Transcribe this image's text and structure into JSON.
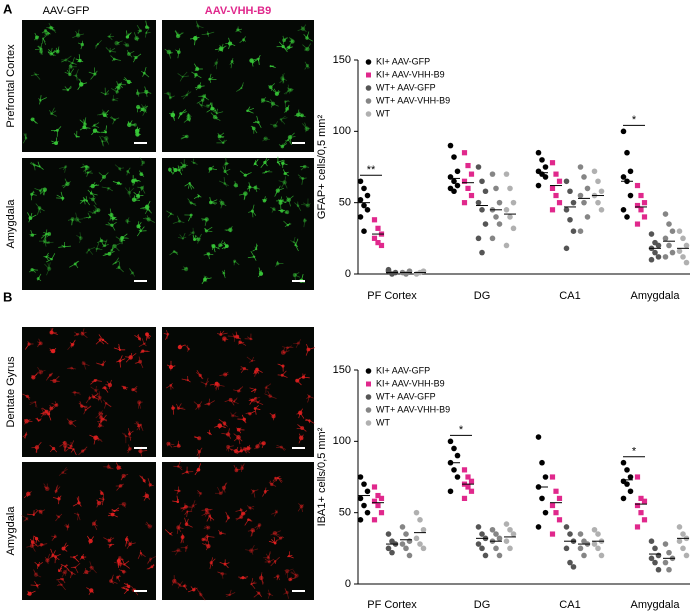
{
  "panels": [
    {
      "label": "A",
      "columns": [
        "AAV-GFP",
        "AAV-VHH-B9"
      ],
      "rows": [
        "Prefrontal Cortex",
        "Amygdala"
      ],
      "stain_color": "#38c838"
    },
    {
      "label": "B",
      "rows": [
        "Dentate Gyrus",
        "Amygdala"
      ],
      "stain_color": "#e02020"
    }
  ],
  "chart_data": [
    {
      "type": "dot",
      "y_label": "GFAP+ cells/0,5 mm²",
      "categories": [
        "PF Cortex",
        "DG",
        "CA1",
        "Amygdala"
      ],
      "ylim": [
        0,
        150
      ],
      "yticks": [
        0,
        50,
        100,
        150
      ],
      "series": [
        {
          "name": "KI+ AAV-GFP",
          "color": "#000000",
          "marker": "circle",
          "values": [
            [
              65,
              60,
              55,
              52,
              48,
              45,
              40,
              30
            ],
            [
              90,
              82,
              72,
              68,
              65,
              62,
              60,
              58
            ],
            [
              85,
              80,
              75,
              72,
              70,
              68,
              62
            ],
            [
              100,
              85,
              72,
              68,
              65,
              55,
              45,
              40
            ]
          ],
          "means": [
            50,
            67,
            71,
            65
          ]
        },
        {
          "name": "KI+ AAV-VHH-B9",
          "color": "#e0288c",
          "marker": "square",
          "values": [
            [
              38,
              32,
              28,
              25,
              22,
              20
            ],
            [
              85,
              76,
              70,
              65,
              60,
              55,
              50
            ],
            [
              78,
              70,
              65,
              60,
              55,
              50,
              45
            ],
            [
              62,
              55,
              50,
              48,
              45,
              40,
              35
            ]
          ],
          "means": [
            28,
            64,
            62,
            47
          ]
        },
        {
          "name": "WT+ AAV-GFP",
          "color": "#555555",
          "marker": "circle",
          "values": [
            [
              2,
              0,
              1,
              3
            ],
            [
              75,
              65,
              58,
              50,
              45,
              35,
              25,
              15
            ],
            [
              65,
              58,
              50,
              45,
              38,
              30,
              18
            ],
            [
              28,
              22,
              20,
              18,
              15,
              12,
              10
            ]
          ],
          "means": [
            1,
            48,
            47,
            18
          ]
        },
        {
          "name": "WT+ AAV-VHH-B9",
          "color": "#858585",
          "marker": "circle",
          "values": [
            [
              1,
              0,
              2
            ],
            [
              70,
              60,
              50,
              45,
              40,
              35,
              25
            ],
            [
              75,
              68,
              60,
              55,
              50,
              40,
              30
            ],
            [
              42,
              35,
              30,
              25,
              20,
              15,
              12
            ]
          ],
          "means": [
            1,
            45,
            53,
            23
          ]
        },
        {
          "name": "WT",
          "color": "#b0b0b0",
          "marker": "circle",
          "values": [
            [
              0,
              1,
              2
            ],
            [
              70,
              60,
              50,
              45,
              40,
              32,
              20
            ],
            [
              72,
              65,
              58,
              55,
              50,
              45
            ],
            [
              30,
              25,
              20,
              16,
              12,
              8
            ]
          ],
          "means": [
            1,
            42,
            55,
            18
          ]
        }
      ],
      "annotations": [
        {
          "text": "**",
          "at": "PF Cortex"
        },
        {
          "text": "*",
          "at": "Amygdala"
        }
      ]
    },
    {
      "type": "dot",
      "y_label": "IBA1+ cells/0,5 mm²",
      "categories": [
        "PF Cortex",
        "DG",
        "CA1",
        "Amygdala"
      ],
      "ylim": [
        0,
        150
      ],
      "yticks": [
        0,
        50,
        100,
        150
      ],
      "series": [
        {
          "name": "KI+ AAV-GFP",
          "color": "#000000",
          "marker": "circle",
          "values": [
            [
              75,
              70,
              65,
              60,
              55,
              50,
              45
            ],
            [
              100,
              95,
              90,
              85,
              80,
              75,
              65
            ],
            [
              103,
              85,
              75,
              68,
              60,
              50,
              40
            ],
            [
              85,
              80,
              75,
              72,
              70,
              65,
              60
            ]
          ],
          "means": [
            62,
            85,
            68,
            73
          ]
        },
        {
          "name": "KI+ AAV-VHH-B9",
          "color": "#e0288c",
          "marker": "square",
          "values": [
            [
              68,
              62,
              60,
              58,
              55,
              50,
              45
            ],
            [
              80,
              75,
              72,
              70,
              68,
              65,
              60
            ],
            [
              75,
              65,
              60,
              55,
              50,
              45,
              35
            ],
            [
              75,
              60,
              58,
              55,
              50,
              45,
              40
            ]
          ],
          "means": [
            57,
            70,
            57,
            56
          ]
        },
        {
          "name": "WT+ AAV-GFP",
          "color": "#555555",
          "marker": "circle",
          "values": [
            [
              35,
              30,
              28,
              25,
              22
            ],
            [
              40,
              35,
              32,
              28,
              25,
              20
            ],
            [
              40,
              35,
              30,
              25,
              15,
              12
            ],
            [
              30,
              25,
              20,
              18,
              15,
              10
            ]
          ],
          "means": [
            28,
            32,
            30,
            21
          ]
        },
        {
          "name": "WT+ AAV-VHH-B9",
          "color": "#858585",
          "marker": "circle",
          "values": [
            [
              40,
              35,
              30,
              28,
              25,
              20
            ],
            [
              38,
              35,
              32,
              30,
              25,
              20
            ],
            [
              35,
              30,
              28,
              25,
              20
            ],
            [
              28,
              22,
              18,
              15,
              10
            ]
          ],
          "means": [
            31,
            30,
            28,
            18
          ]
        },
        {
          "name": "WT",
          "color": "#b0b0b0",
          "marker": "circle",
          "values": [
            [
              50,
              45,
              38,
              32,
              28,
              25
            ],
            [
              42,
              38,
              35,
              30,
              25
            ],
            [
              38,
              35,
              30,
              28,
              25,
              20
            ],
            [
              40,
              35,
              32,
              30,
              25,
              20
            ]
          ],
          "means": [
            36,
            33,
            30,
            32
          ]
        }
      ],
      "annotations": [
        {
          "text": "*",
          "at": "DG"
        },
        {
          "text": "*",
          "at": "Amygdala"
        }
      ]
    }
  ]
}
